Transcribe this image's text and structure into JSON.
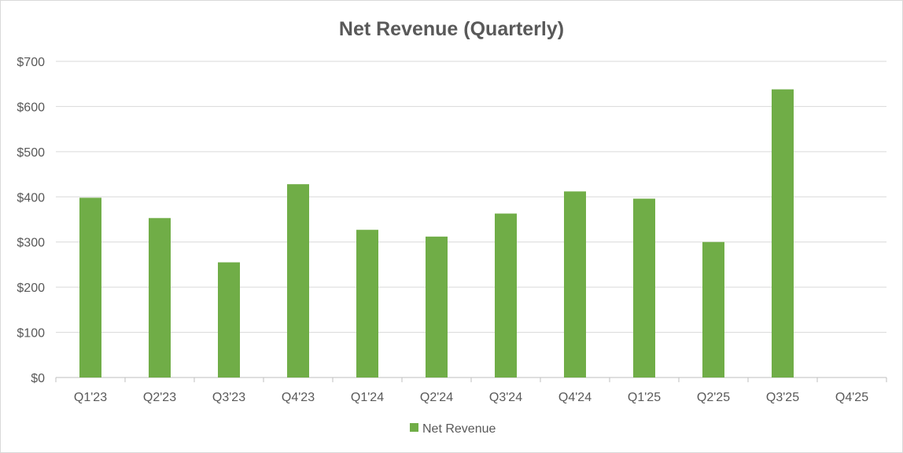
{
  "chart_data": {
    "type": "bar",
    "title": "Net Revenue (Quarterly)",
    "xlabel": "",
    "ylabel": "",
    "ylim": [
      0,
      700
    ],
    "ytick_step": 100,
    "ytick_prefix": "$",
    "grid": true,
    "legend_position": "bottom-center",
    "categories": [
      "Q1'23",
      "Q2'23",
      "Q3'23",
      "Q4'23",
      "Q1'24",
      "Q2'24",
      "Q3'24",
      "Q4'24",
      "Q1'25",
      "Q2'25",
      "Q3'25",
      "Q4'25"
    ],
    "series": [
      {
        "name": "Net Revenue",
        "color": "#70ad47",
        "values": [
          398,
          353,
          255,
          428,
          327,
          312,
          363,
          412,
          396,
          300,
          638,
          null
        ]
      }
    ]
  }
}
